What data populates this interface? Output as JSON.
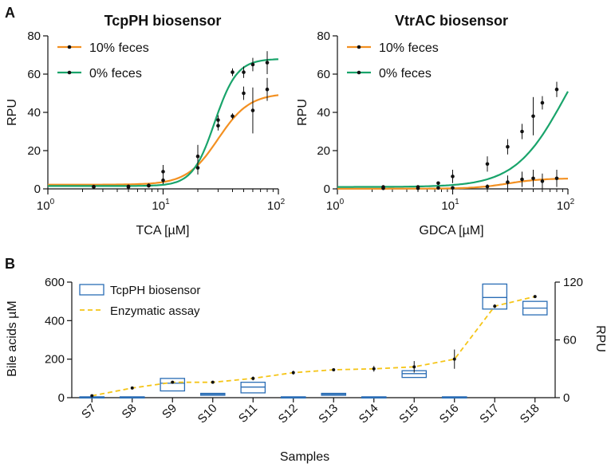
{
  "chart_data": [
    {
      "panel": "A",
      "type": "line",
      "title": "TcpPH biosensor",
      "xlabel": "TCA [µM]",
      "ylabel": "RPU",
      "xscale": "log",
      "xlim": [
        1,
        100
      ],
      "ylim": [
        0,
        80
      ],
      "xticks": [
        1,
        10,
        100
      ],
      "xtick_labels": [
        [
          "10",
          "0"
        ],
        [
          "10",
          "1"
        ],
        [
          "10",
          "2"
        ]
      ],
      "yticks": [
        0,
        20,
        40,
        60,
        80
      ],
      "legend_position": "top-left",
      "series": [
        {
          "name": "10% feces",
          "color": "#f39021",
          "fit": {
            "bottom": 2.2,
            "top": 50,
            "ec50": 30,
            "hill": 3.2
          },
          "points": [
            {
              "x": 2.5,
              "y": 1.2,
              "err": 0.8
            },
            {
              "x": 5,
              "y": 1.3,
              "err": 0.8
            },
            {
              "x": 7.5,
              "y": 1.8,
              "err": 1.0
            },
            {
              "x": 10,
              "y": 4.5,
              "err": 2.0
            },
            {
              "x": 20,
              "y": 11,
              "err": 3.5
            },
            {
              "x": 30,
              "y": 33,
              "err": 2.5
            },
            {
              "x": 40,
              "y": 38,
              "err": 1.5
            },
            {
              "x": 50,
              "y": 50,
              "err": 3.5
            },
            {
              "x": 60,
              "y": 41,
              "err": 12
            },
            {
              "x": 80,
              "y": 52,
              "err": 6
            }
          ]
        },
        {
          "name": "0% feces",
          "color": "#19a46b",
          "fit": {
            "bottom": 1.5,
            "top": 68,
            "ec50": 28,
            "hill": 4.5
          },
          "points": [
            {
              "x": 2.5,
              "y": 1.0,
              "err": 0.8
            },
            {
              "x": 5,
              "y": 1.0,
              "err": 0.8
            },
            {
              "x": 7.5,
              "y": 1.6,
              "err": 0.8
            },
            {
              "x": 10,
              "y": 9,
              "err": 3.5
            },
            {
              "x": 20,
              "y": 17,
              "err": 6
            },
            {
              "x": 30,
              "y": 36,
              "err": 2.5
            },
            {
              "x": 40,
              "y": 61,
              "err": 2
            },
            {
              "x": 50,
              "y": 61,
              "err": 3
            },
            {
              "x": 60,
              "y": 65,
              "err": 3.5
            },
            {
              "x": 80,
              "y": 66,
              "err": 6
            }
          ]
        }
      ]
    },
    {
      "panel": "",
      "type": "line",
      "title": "VtrAC biosensor",
      "xlabel": "GDCA [µM]",
      "ylabel": "RPU",
      "xscale": "log",
      "xlim": [
        1,
        100
      ],
      "ylim": [
        0,
        80
      ],
      "xticks": [
        1,
        10,
        100
      ],
      "xtick_labels": [
        [
          "10",
          "0"
        ],
        [
          "10",
          "1"
        ],
        [
          "10",
          "2"
        ]
      ],
      "yticks": [
        0,
        20,
        40,
        60,
        80
      ],
      "legend_position": "top-left",
      "series": [
        {
          "name": "10% feces",
          "color": "#f39021",
          "fit": {
            "bottom": 0.1,
            "top": 5.5,
            "ec50": 30,
            "hill": 3
          },
          "points": [
            {
              "x": 2.5,
              "y": 0.3,
              "err": 0.8
            },
            {
              "x": 5,
              "y": 0.3,
              "err": 0.8
            },
            {
              "x": 7.5,
              "y": 0.5,
              "err": 0.8
            },
            {
              "x": 10,
              "y": 0.5,
              "err": 0.8
            },
            {
              "x": 20,
              "y": 1.2,
              "err": 1.2
            },
            {
              "x": 30,
              "y": 3.5,
              "err": 3.5
            },
            {
              "x": 40,
              "y": 5,
              "err": 4
            },
            {
              "x": 50,
              "y": 5.5,
              "err": 4.5
            },
            {
              "x": 60,
              "y": 4,
              "err": 4
            },
            {
              "x": 80,
              "y": 5.5,
              "err": 4.5
            }
          ]
        },
        {
          "name": "0% feces",
          "color": "#19a46b",
          "fit": {
            "bottom": 1.0,
            "top": 96,
            "ec50": 95,
            "hill": 2
          },
          "points": [
            {
              "x": 2.5,
              "y": 1.0,
              "err": 0.8
            },
            {
              "x": 5,
              "y": 1.0,
              "err": 0.8
            },
            {
              "x": 7.5,
              "y": 3,
              "err": 0.8
            },
            {
              "x": 10,
              "y": 6.5,
              "err": 3.5
            },
            {
              "x": 20,
              "y": 13,
              "err": 4
            },
            {
              "x": 30,
              "y": 22,
              "err": 4
            },
            {
              "x": 40,
              "y": 30,
              "err": 4
            },
            {
              "x": 50,
              "y": 38,
              "err": 10
            },
            {
              "x": 60,
              "y": 45,
              "err": 3.5
            },
            {
              "x": 80,
              "y": 52,
              "err": 4
            }
          ]
        }
      ]
    },
    {
      "panel": "B",
      "type": "box+line",
      "xlabel": "Samples",
      "ylabel": "Bile acids µM",
      "ylabel_right": "RPU",
      "ylim": [
        0,
        600
      ],
      "ylim_right": [
        0,
        120
      ],
      "yticks": [
        0,
        200,
        400,
        600
      ],
      "yticks_right": [
        0,
        60,
        120
      ],
      "categories": [
        "S7",
        "S8",
        "S9",
        "S10",
        "S11",
        "S12",
        "S13",
        "S14",
        "S15",
        "S16",
        "S17",
        "S18"
      ],
      "legend_position": "top-left",
      "box_series": {
        "name": "TcpPH biosensor",
        "color": "#2a6db5",
        "axis": "right",
        "boxes": [
          {
            "low": 0.2,
            "mid": 0.5,
            "high": 0.9
          },
          {
            "low": 0.2,
            "mid": 0.5,
            "high": 0.9
          },
          {
            "low": 7,
            "mid": 15,
            "high": 20
          },
          {
            "low": 2.5,
            "mid": 3.5,
            "high": 4.5
          },
          {
            "low": 5,
            "mid": 11,
            "high": 16
          },
          {
            "low": 0.2,
            "mid": 0.5,
            "high": 0.9
          },
          {
            "low": 2.5,
            "mid": 3.5,
            "high": 4.5
          },
          {
            "low": 0.2,
            "mid": 0.5,
            "high": 0.9
          },
          {
            "low": 21,
            "mid": 25,
            "high": 28
          },
          {
            "low": 0.2,
            "mid": 0.5,
            "high": 0.9
          },
          {
            "low": 92,
            "mid": 104,
            "high": 118
          },
          {
            "low": 86,
            "mid": 93,
            "high": 100
          }
        ]
      },
      "line_series": {
        "name": "Enzymatic assay",
        "color": "#f5c518",
        "axis": "left",
        "points": [
          {
            "y": 10,
            "err": 0
          },
          {
            "y": 50,
            "err": 0
          },
          {
            "y": 80,
            "err": 0
          },
          {
            "y": 80,
            "err": 0
          },
          {
            "y": 100,
            "err": 10
          },
          {
            "y": 130,
            "err": 10
          },
          {
            "y": 145,
            "err": 0
          },
          {
            "y": 150,
            "err": 15
          },
          {
            "y": 160,
            "err": 30
          },
          {
            "y": 200,
            "err": 50
          },
          {
            "y": 475,
            "err": 10
          },
          {
            "y": 525,
            "err": 0
          }
        ]
      }
    }
  ]
}
